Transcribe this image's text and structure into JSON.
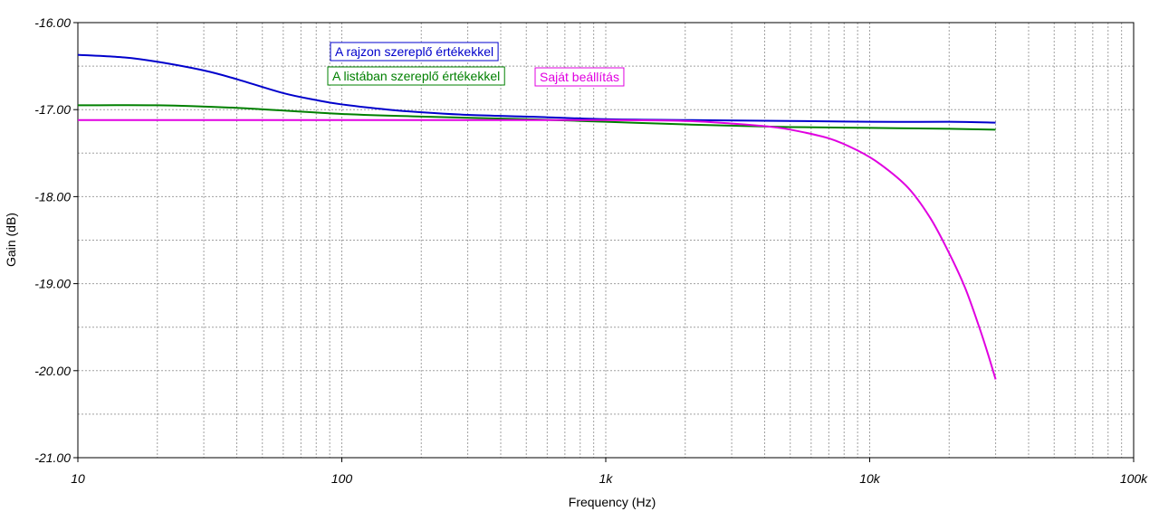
{
  "chart_data": {
    "type": "line",
    "xlabel": "Frequency (Hz)",
    "ylabel": "Gain (dB)",
    "x_scale": "log",
    "xlim": [
      10,
      100000
    ],
    "ylim": [
      -21,
      -16
    ],
    "grid": true,
    "x_tick_labels": [
      "10",
      "100",
      "1k",
      "10k",
      "100k"
    ],
    "y_tick_labels": [
      "-16.00",
      "-17.00",
      "-18.00",
      "-19.00",
      "-20.00",
      "-21.00"
    ],
    "series": [
      {
        "name": "A rajzon szereplő értékekkel",
        "color": "#0000cc",
        "points": [
          [
            10,
            -16.37
          ],
          [
            15,
            -16.4
          ],
          [
            20,
            -16.45
          ],
          [
            30,
            -16.55
          ],
          [
            40,
            -16.65
          ],
          [
            60,
            -16.81
          ],
          [
            80,
            -16.89
          ],
          [
            100,
            -16.94
          ],
          [
            150,
            -17.0
          ],
          [
            200,
            -17.03
          ],
          [
            300,
            -17.06
          ],
          [
            500,
            -17.08
          ],
          [
            1000,
            -17.11
          ],
          [
            2000,
            -17.12
          ],
          [
            5000,
            -17.13
          ],
          [
            10000,
            -17.14
          ],
          [
            20000,
            -17.14
          ],
          [
            30000,
            -17.15
          ]
        ]
      },
      {
        "name": "A listában szereplő értékekkel",
        "color": "#008000",
        "points": [
          [
            10,
            -16.95
          ],
          [
            20,
            -16.95
          ],
          [
            40,
            -16.98
          ],
          [
            100,
            -17.05
          ],
          [
            200,
            -17.08
          ],
          [
            500,
            -17.11
          ],
          [
            1000,
            -17.14
          ],
          [
            2000,
            -17.17
          ],
          [
            5000,
            -17.2
          ],
          [
            10000,
            -17.21
          ],
          [
            20000,
            -17.22
          ],
          [
            30000,
            -17.23
          ]
        ]
      },
      {
        "name": "Saját beállítás",
        "color": "#e000e0",
        "points": [
          [
            10,
            -17.12
          ],
          [
            100,
            -17.12
          ],
          [
            1000,
            -17.12
          ],
          [
            2000,
            -17.13
          ],
          [
            3000,
            -17.16
          ],
          [
            4000,
            -17.19
          ],
          [
            5000,
            -17.23
          ],
          [
            7000,
            -17.33
          ],
          [
            9000,
            -17.47
          ],
          [
            11000,
            -17.63
          ],
          [
            14000,
            -17.9
          ],
          [
            17000,
            -18.25
          ],
          [
            20000,
            -18.65
          ],
          [
            23000,
            -19.05
          ],
          [
            26000,
            -19.5
          ],
          [
            28000,
            -19.8
          ],
          [
            30000,
            -20.1
          ]
        ]
      }
    ]
  }
}
